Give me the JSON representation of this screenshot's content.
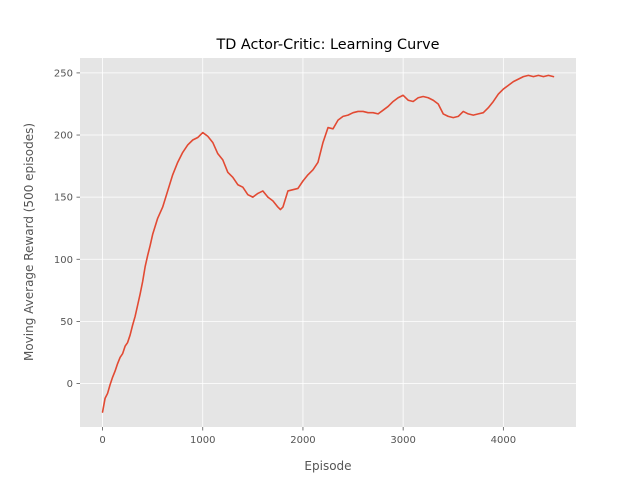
{
  "chart_data": {
    "type": "line",
    "title": "TD Actor-Critic: Learning Curve",
    "xlabel": "Episode",
    "ylabel": "Moving Average Reward (500 episodes)",
    "xlim": [
      -225,
      4725
    ],
    "ylim": [
      -35,
      262
    ],
    "xticks": [
      0,
      1000,
      2000,
      3000,
      4000
    ],
    "yticks": [
      0,
      50,
      100,
      150,
      200,
      250
    ],
    "grid": true,
    "style": "ggplot",
    "colors": {
      "background": "#E5E5E5",
      "grid": "#FFFFFF",
      "line": "#E24A33",
      "text": "#555555"
    },
    "series": [
      {
        "name": "",
        "x": [
          0,
          25,
          50,
          75,
          100,
          125,
          150,
          175,
          200,
          225,
          250,
          275,
          300,
          325,
          350,
          375,
          400,
          425,
          450,
          475,
          500,
          550,
          600,
          650,
          700,
          750,
          800,
          850,
          900,
          950,
          1000,
          1050,
          1100,
          1150,
          1200,
          1250,
          1300,
          1350,
          1400,
          1450,
          1500,
          1550,
          1600,
          1650,
          1700,
          1750,
          1775,
          1800,
          1850,
          1900,
          1950,
          2000,
          2050,
          2100,
          2150,
          2200,
          2250,
          2300,
          2350,
          2400,
          2450,
          2500,
          2550,
          2600,
          2650,
          2700,
          2750,
          2800,
          2850,
          2900,
          2950,
          3000,
          3050,
          3100,
          3150,
          3200,
          3250,
          3300,
          3350,
          3400,
          3450,
          3500,
          3550,
          3600,
          3650,
          3700,
          3750,
          3800,
          3850,
          3900,
          3950,
          4000,
          4050,
          4100,
          4150,
          4200,
          4250,
          4300,
          4350,
          4400,
          4450,
          4500
        ],
        "y": [
          -23,
          -12,
          -8,
          -1,
          5,
          10,
          16,
          21,
          24,
          30,
          33,
          39,
          47,
          54,
          63,
          72,
          82,
          94,
          103,
          111,
          120,
          133,
          142,
          155,
          168,
          178,
          186,
          192,
          196,
          198,
          202,
          199,
          194,
          185,
          180,
          170,
          166,
          160,
          158,
          152,
          150,
          153,
          155,
          150,
          147,
          142,
          140,
          142,
          155,
          156,
          157,
          163,
          168,
          172,
          178,
          194,
          206,
          205,
          212,
          215,
          216,
          218,
          219,
          219,
          218,
          218,
          217,
          220,
          223,
          227,
          230,
          232,
          228,
          227,
          230,
          231,
          230,
          228,
          225,
          217,
          215,
          214,
          215,
          219,
          217,
          216,
          217,
          218,
          222,
          227,
          233,
          237,
          240,
          243,
          245,
          247,
          248,
          247,
          248,
          247,
          248,
          247
        ]
      }
    ]
  }
}
